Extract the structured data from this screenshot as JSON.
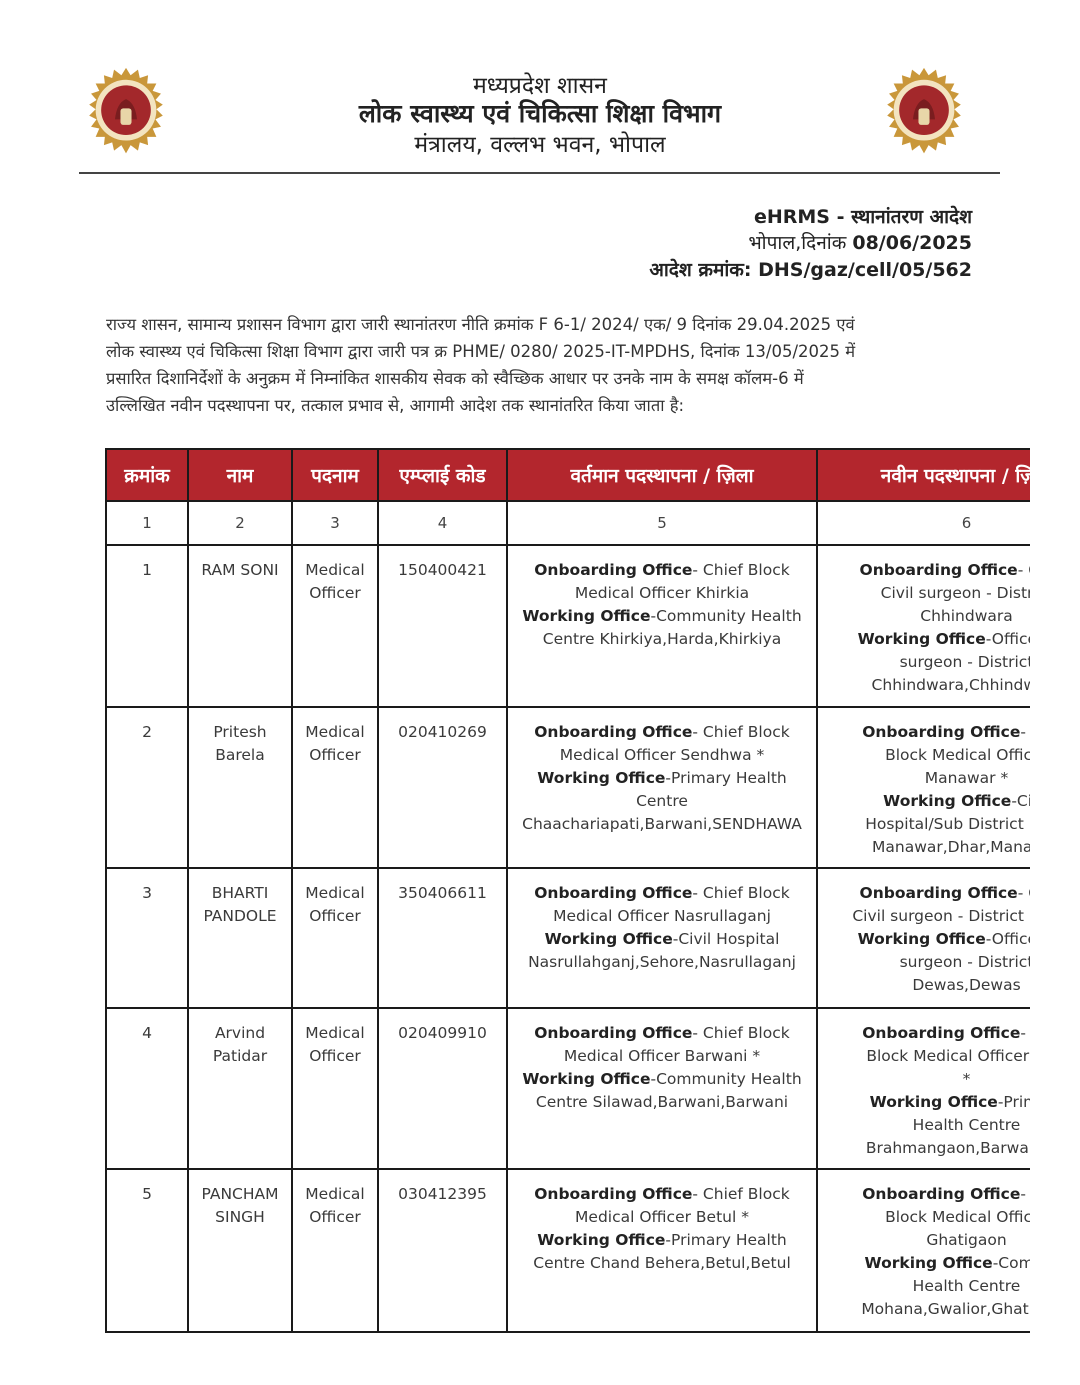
{
  "header": {
    "line1": "मध्यप्रदेश शासन",
    "line2": "लोक स्वास्थ्य एवं चिकित्सा शिक्षा विभाग",
    "line3": "मंत्रालय, वल्लभ भवन, भोपाल",
    "logo_icon": "mp-government-emblem",
    "logo_colors": {
      "ring": "#c9973a",
      "inner": "#a3282b"
    }
  },
  "order": {
    "title": "eHRMS - स्थानांतरण आदेश",
    "date_label": "भोपाल,दिनांक",
    "date": "08/06/2025",
    "number_label": "आदेश क्रमांक:",
    "number": "DHS/gaz/cell/05/562"
  },
  "paragraph": [
    "राज्य शासन, सामान्य प्रशासन विभाग द्वारा जारी स्थानांतरण नीति क्रमांक F 6-1/ 2024/ एक/ 9 दिनांक 29.04.2025 एवं",
    "लोक स्वास्थ्य एवं चिकित्सा शिक्षा विभाग द्वारा जारी पत्र क्र PHME/ 0280/ 2025-IT-MPDHS, दिनांक 13/05/2025 में",
    "प्रसारित दिशानिर्देशों के अनुक्रम में निम्नांकित शासकीय सेवक को स्वैच्छिक आधार पर उनके नाम के समक्ष कॉलम-6 में",
    "उल्लिखित नवीन पदस्थापना पर, तत्काल प्रभाव से, आगामी आदेश तक स्थानांतरित किया जाता है:"
  ],
  "table": {
    "header_color": "#b3262d",
    "headers": [
      "क्रमांक",
      "नाम",
      "पदनाम",
      "एम्प्लाई कोड",
      "वर्तमान पदस्थापना / ज़िला",
      "नवीन पदस्थापना / ज़िला"
    ],
    "column_numbers": [
      "1",
      "2",
      "3",
      "4",
      "5",
      "6"
    ],
    "rows": [
      {
        "sno": "1",
        "name": [
          "RAM SONI"
        ],
        "designation": [
          "Medical",
          "Officer"
        ],
        "code": "150400421",
        "current": [
          {
            "b": "Onboarding Office",
            "t": "- Chief Block"
          },
          {
            "b": "",
            "t": "Medical Officer Khirkia"
          },
          {
            "b": "Working Office",
            "t": "-Community Health"
          },
          {
            "b": "",
            "t": "Centre Khirkiya,Harda,Khirkiya"
          }
        ],
        "new": [
          {
            "b": "Onboarding Office",
            "t": "- Office"
          },
          {
            "b": "",
            "t": "Civil surgeon - District"
          },
          {
            "b": "",
            "t": "Chhindwara"
          },
          {
            "b": "Working Office",
            "t": "-Office Of C"
          },
          {
            "b": "",
            "t": "surgeon - District"
          },
          {
            "b": "",
            "t": "Chhindwara,Chhindwara"
          }
        ]
      },
      {
        "sno": "2",
        "name": [
          "Pritesh",
          "Barela"
        ],
        "designation": [
          "Medical",
          "Officer"
        ],
        "code": "020410269",
        "current": [
          {
            "b": "Onboarding Office",
            "t": "- Chief Block"
          },
          {
            "b": "",
            "t": "Medical Officer Sendhwa *"
          },
          {
            "b": "Working Office",
            "t": "-Primary Health"
          },
          {
            "b": "",
            "t": "Centre"
          },
          {
            "b": "",
            "t": "Chaachariapati,Barwani,SENDHAWA"
          }
        ],
        "new": [
          {
            "b": "Onboarding Office",
            "t": "- Chief"
          },
          {
            "b": "",
            "t": "Block Medical Officer"
          },
          {
            "b": "",
            "t": "Manawar *"
          },
          {
            "b": "Working Office",
            "t": "-Civil"
          },
          {
            "b": "",
            "t": "Hospital/Sub District Hosp"
          },
          {
            "b": "",
            "t": "Manawar,Dhar,Manawar"
          }
        ]
      },
      {
        "sno": "3",
        "name": [
          "BHARTI",
          "PANDOLE"
        ],
        "designation": [
          "Medical",
          "Officer"
        ],
        "code": "350406611",
        "current": [
          {
            "b": "Onboarding Office",
            "t": "- Chief Block"
          },
          {
            "b": "",
            "t": "Medical Officer Nasrullaganj"
          },
          {
            "b": "Working Office",
            "t": "-Civil Hospital"
          },
          {
            "b": "",
            "t": "Nasrullahganj,Sehore,Nasrullaganj"
          }
        ],
        "new": [
          {
            "b": "Onboarding Office",
            "t": "- Office"
          },
          {
            "b": "",
            "t": "Civil surgeon - District Dewas"
          },
          {
            "b": "Working Office",
            "t": "-Office Of C"
          },
          {
            "b": "",
            "t": "surgeon - District"
          },
          {
            "b": "",
            "t": "Dewas,Dewas"
          }
        ]
      },
      {
        "sno": "4",
        "name": [
          "Arvind",
          "Patidar"
        ],
        "designation": [
          "Medical",
          "Officer"
        ],
        "code": "020409910",
        "current": [
          {
            "b": "Onboarding Office",
            "t": "- Chief Block"
          },
          {
            "b": "",
            "t": "Medical Officer Barwani *"
          },
          {
            "b": "Working Office",
            "t": "-Community Health"
          },
          {
            "b": "",
            "t": "Centre Silawad,Barwani,Barwani"
          }
        ],
        "new": [
          {
            "b": "Onboarding Office",
            "t": "- Chief"
          },
          {
            "b": "",
            "t": "Block Medical Officer Thik"
          },
          {
            "b": "",
            "t": "*"
          },
          {
            "b": "Working Office",
            "t": "-Primary"
          },
          {
            "b": "",
            "t": "Health Centre"
          },
          {
            "b": "",
            "t": "Brahmangaon,Barwani,Th"
          }
        ]
      },
      {
        "sno": "5",
        "name": [
          "PANCHAM",
          "SINGH"
        ],
        "designation": [
          "Medical",
          "Officer"
        ],
        "code": "030412395",
        "current": [
          {
            "b": "Onboarding Office",
            "t": "- Chief Block"
          },
          {
            "b": "",
            "t": "Medical Officer Betul *"
          },
          {
            "b": "Working Office",
            "t": "-Primary Health"
          },
          {
            "b": "",
            "t": "Centre Chand Behera,Betul,Betul"
          }
        ],
        "new": [
          {
            "b": "Onboarding Office",
            "t": "- Chief"
          },
          {
            "b": "",
            "t": "Block Medical Officer"
          },
          {
            "b": "",
            "t": "Ghatigaon"
          },
          {
            "b": "Working Office",
            "t": "-Commun"
          },
          {
            "b": "",
            "t": "Health Centre"
          },
          {
            "b": "",
            "t": "Mohana,Gwalior,Ghatigaon"
          }
        ]
      }
    ]
  }
}
